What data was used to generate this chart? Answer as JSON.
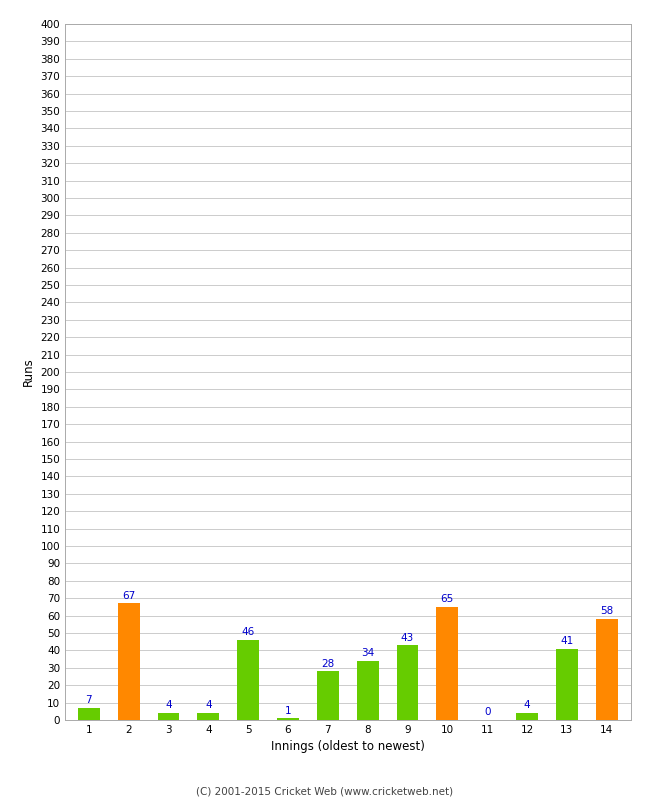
{
  "values": [
    7,
    67,
    4,
    4,
    46,
    1,
    28,
    34,
    43,
    65,
    0,
    4,
    41,
    58
  ],
  "bar_colors": [
    "#66cc00",
    "#ff8800",
    "#66cc00",
    "#66cc00",
    "#66cc00",
    "#66cc00",
    "#66cc00",
    "#66cc00",
    "#66cc00",
    "#ff8800",
    "#66cc00",
    "#66cc00",
    "#66cc00",
    "#ff8800"
  ],
  "xlabel": "Innings (oldest to newest)",
  "ylabel": "Runs",
  "ylim": [
    0,
    400
  ],
  "ytick_step": 10,
  "footer": "(C) 2001-2015 Cricket Web (www.cricketweb.net)",
  "label_color": "#0000cc",
  "background_color": "#ffffff",
  "grid_color": "#cccccc",
  "num_innings": 14,
  "bar_width": 0.55
}
